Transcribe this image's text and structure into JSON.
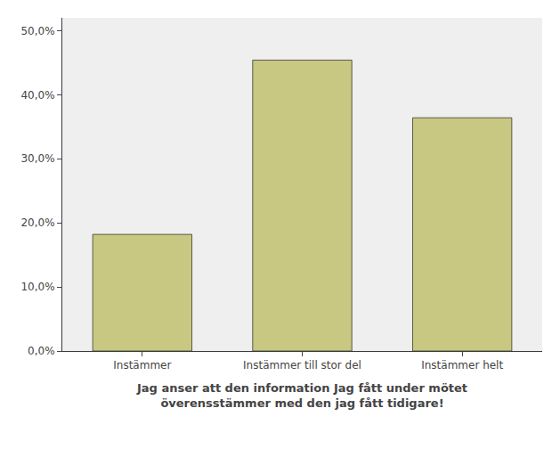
{
  "chart_data": {
    "type": "bar",
    "categories": [
      "Instämmer",
      "Instämmer till stor del",
      "Instämmer helt"
    ],
    "values": [
      0.182,
      0.454,
      0.364
    ],
    "color": "#c8c882",
    "xlabel": "Jag anser att den information Jag fått under mötet\növerensstämmer med den jag fått tidigare!",
    "ylim": [
      0,
      0.52
    ],
    "yticks": [
      {
        "value": 0.0,
        "label": "0,0%"
      },
      {
        "value": 0.1,
        "label": "10,0%"
      },
      {
        "value": 0.2,
        "label": "20,0%"
      },
      {
        "value": 0.3,
        "label": "30,0%"
      },
      {
        "value": 0.4,
        "label": "40,0%"
      },
      {
        "value": 0.5,
        "label": "50,0%"
      }
    ],
    "grid": false
  }
}
